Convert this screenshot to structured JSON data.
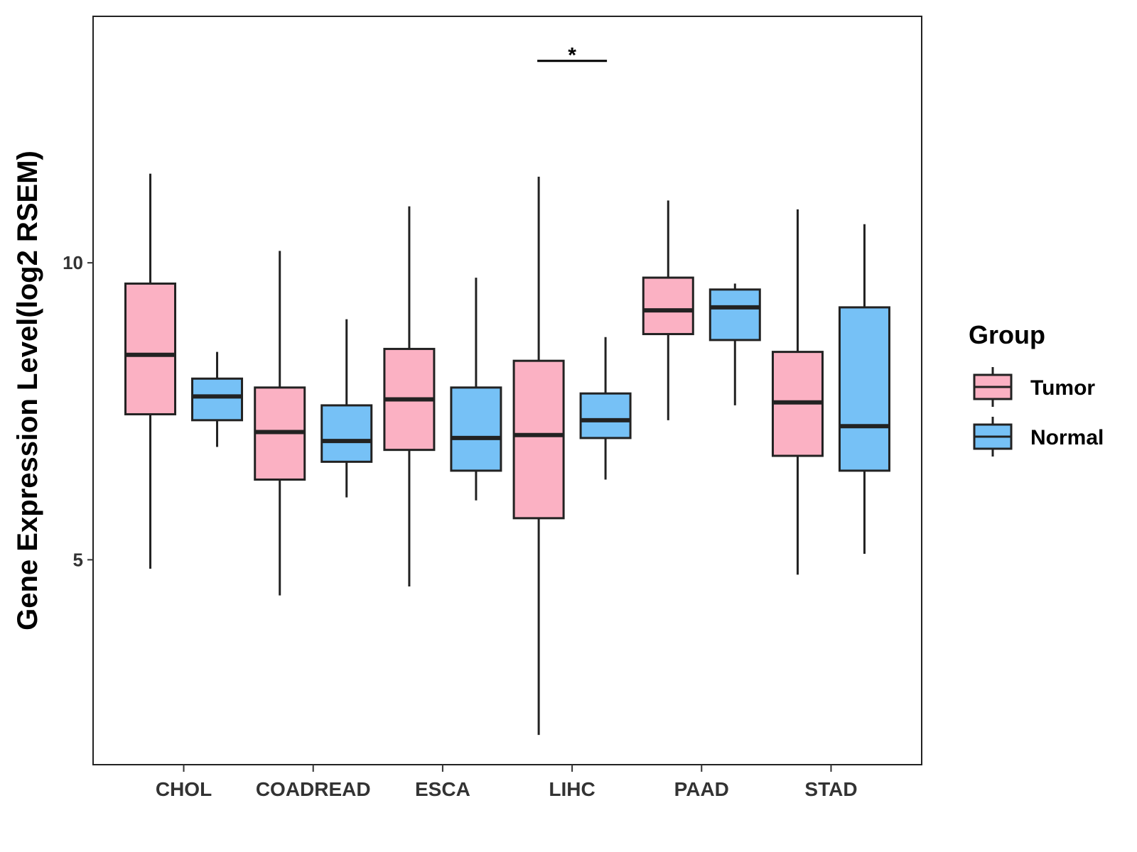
{
  "chart_data": {
    "type": "boxplot",
    "title": "",
    "xlabel": "",
    "ylabel": "Gene Expression Level(log2 RSEM)",
    "ylim": [
      1.55,
      14.15
    ],
    "yticks": [
      5,
      10
    ],
    "grid": false,
    "categories": [
      "CHOL",
      "COADREAD",
      "ESCA",
      "LIHC",
      "PAAD",
      "STAD"
    ],
    "legend": {
      "title": "Group",
      "position": "right",
      "entries": [
        {
          "name": "Tumor",
          "color": "#FBB1C3"
        },
        {
          "name": "Normal",
          "color": "#76C1F6"
        }
      ]
    },
    "series": [
      {
        "name": "Tumor",
        "color": "#FBB1C3",
        "boxes": [
          {
            "category": "CHOL",
            "whisker_low": 4.85,
            "q1": 7.45,
            "median": 8.45,
            "q3": 9.65,
            "whisker_high": 11.5
          },
          {
            "category": "COADREAD",
            "whisker_low": 4.4,
            "q1": 6.35,
            "median": 7.15,
            "q3": 7.9,
            "whisker_high": 10.2
          },
          {
            "category": "ESCA",
            "whisker_low": 4.55,
            "q1": 6.85,
            "median": 7.7,
            "q3": 8.55,
            "whisker_high": 10.95
          },
          {
            "category": "LIHC",
            "whisker_low": 2.05,
            "q1": 5.7,
            "median": 7.1,
            "q3": 8.35,
            "whisker_high": 11.45
          },
          {
            "category": "PAAD",
            "whisker_low": 7.35,
            "q1": 8.8,
            "median": 9.2,
            "q3": 9.75,
            "whisker_high": 11.05
          },
          {
            "category": "STAD",
            "whisker_low": 4.75,
            "q1": 6.75,
            "median": 7.65,
            "q3": 8.5,
            "whisker_high": 10.9
          }
        ]
      },
      {
        "name": "Normal",
        "color": "#76C1F6",
        "boxes": [
          {
            "category": "CHOL",
            "whisker_low": 6.9,
            "q1": 7.35,
            "median": 7.75,
            "q3": 8.05,
            "whisker_high": 8.5
          },
          {
            "category": "COADREAD",
            "whisker_low": 6.05,
            "q1": 6.65,
            "median": 7.0,
            "q3": 7.6,
            "whisker_high": 9.05
          },
          {
            "category": "ESCA",
            "whisker_low": 6.0,
            "q1": 6.5,
            "median": 7.05,
            "q3": 7.9,
            "whisker_high": 9.75
          },
          {
            "category": "LIHC",
            "whisker_low": 6.35,
            "q1": 7.05,
            "median": 7.35,
            "q3": 7.8,
            "whisker_high": 8.75
          },
          {
            "category": "PAAD",
            "whisker_low": 7.6,
            "q1": 8.7,
            "median": 9.25,
            "q3": 9.55,
            "whisker_high": 9.65
          },
          {
            "category": "STAD",
            "whisker_low": 5.1,
            "q1": 6.5,
            "median": 7.25,
            "q3": 9.25,
            "whisker_high": 10.65
          }
        ]
      }
    ],
    "annotations": [
      {
        "type": "significance",
        "category": "LIHC",
        "label": "*",
        "y": 13.4
      }
    ]
  }
}
